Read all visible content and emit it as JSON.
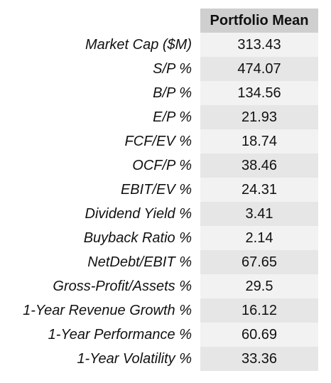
{
  "table": {
    "column_header": "Portfolio Mean",
    "rows": [
      {
        "label": "Market Cap ($M)",
        "value": "313.43"
      },
      {
        "label": "S/P %",
        "value": "474.07"
      },
      {
        "label": "B/P %",
        "value": "134.56"
      },
      {
        "label": "E/P %",
        "value": "21.93"
      },
      {
        "label": "FCF/EV %",
        "value": "18.74"
      },
      {
        "label": "OCF/P %",
        "value": "38.46"
      },
      {
        "label": "EBIT/EV %",
        "value": "24.31"
      },
      {
        "label": "Dividend Yield %",
        "value": "3.41"
      },
      {
        "label": "Buyback Ratio %",
        "value": "2.14"
      },
      {
        "label": "NetDebt/EBIT %",
        "value": "67.65"
      },
      {
        "label": "Gross-Profit/Assets %",
        "value": "29.5"
      },
      {
        "label": "1-Year Revenue Growth %",
        "value": "16.12"
      },
      {
        "label": "1-Year Performance %",
        "value": "60.69"
      },
      {
        "label": "1-Year Volatility %",
        "value": "33.36"
      }
    ]
  }
}
